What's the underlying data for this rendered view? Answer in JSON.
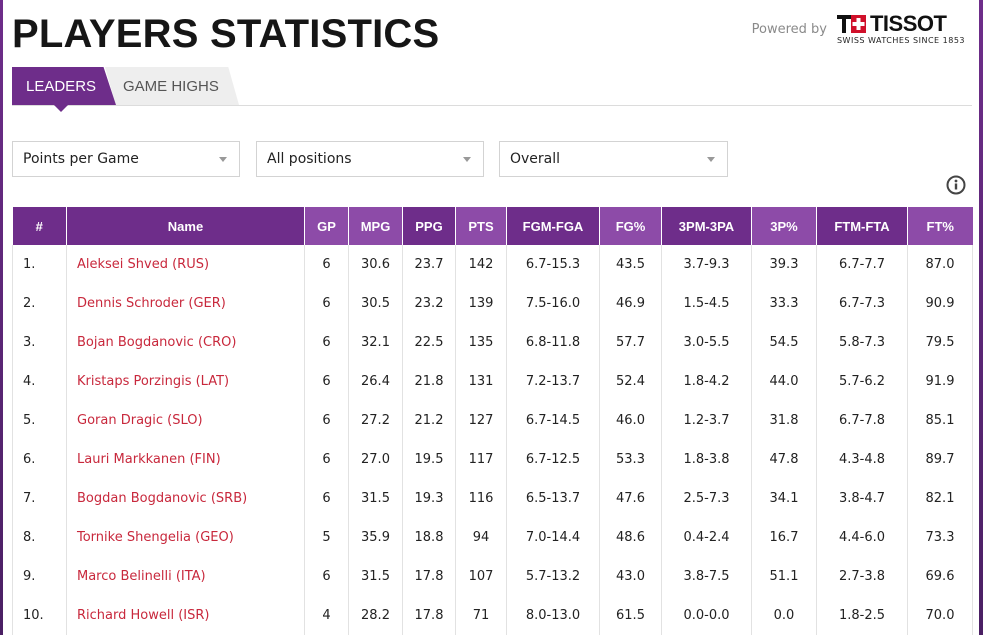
{
  "page": {
    "title": "PLAYERS STATISTICS",
    "powered_by": "Powered by",
    "sponsor": {
      "name": "TISSOT",
      "tagline": "SWISS WATCHES SINCE 1853",
      "icon": "tissot-cross-logo"
    }
  },
  "tabs": [
    {
      "label": "LEADERS",
      "active": true
    },
    {
      "label": "GAME HIGHS",
      "active": false
    }
  ],
  "filters": {
    "stat": "Points per Game",
    "position": "All positions",
    "phase": "Overall"
  },
  "table": {
    "columns": [
      "#",
      "Name",
      "GP",
      "MPG",
      "PPG",
      "PTS",
      "FGM-FGA",
      "FG%",
      "3PM-3PA",
      "3P%",
      "FTM-FTA",
      "FT%"
    ],
    "rows": [
      [
        "1.",
        "Aleksei Shved (RUS)",
        "6",
        "30.6",
        "23.7",
        "142",
        "6.7-15.3",
        "43.5",
        "3.7-9.3",
        "39.3",
        "6.7-7.7",
        "87.0"
      ],
      [
        "2.",
        "Dennis Schroder (GER)",
        "6",
        "30.5",
        "23.2",
        "139",
        "7.5-16.0",
        "46.9",
        "1.5-4.5",
        "33.3",
        "6.7-7.3",
        "90.9"
      ],
      [
        "3.",
        "Bojan Bogdanovic (CRO)",
        "6",
        "32.1",
        "22.5",
        "135",
        "6.8-11.8",
        "57.7",
        "3.0-5.5",
        "54.5",
        "5.8-7.3",
        "79.5"
      ],
      [
        "4.",
        "Kristaps Porzingis (LAT)",
        "6",
        "26.4",
        "21.8",
        "131",
        "7.2-13.7",
        "52.4",
        "1.8-4.2",
        "44.0",
        "5.7-6.2",
        "91.9"
      ],
      [
        "5.",
        "Goran Dragic (SLO)",
        "6",
        "27.2",
        "21.2",
        "127",
        "6.7-14.5",
        "46.0",
        "1.2-3.7",
        "31.8",
        "6.7-7.8",
        "85.1"
      ],
      [
        "6.",
        "Lauri Markkanen (FIN)",
        "6",
        "27.0",
        "19.5",
        "117",
        "6.7-12.5",
        "53.3",
        "1.8-3.8",
        "47.8",
        "4.3-4.8",
        "89.7"
      ],
      [
        "7.",
        "Bogdan Bogdanovic (SRB)",
        "6",
        "31.5",
        "19.3",
        "116",
        "6.5-13.7",
        "47.6",
        "2.5-7.3",
        "34.1",
        "3.8-4.7",
        "82.1"
      ],
      [
        "8.",
        "Tornike Shengelia (GEO)",
        "5",
        "35.9",
        "18.8",
        "94",
        "7.0-14.4",
        "48.6",
        "0.4-2.4",
        "16.7",
        "4.4-6.0",
        "73.3"
      ],
      [
        "9.",
        "Marco Belinelli (ITA)",
        "6",
        "31.5",
        "17.8",
        "107",
        "5.7-13.2",
        "43.0",
        "3.8-7.5",
        "51.1",
        "2.7-3.8",
        "69.6"
      ],
      [
        "10.",
        "Richard Howell (ISR)",
        "4",
        "28.2",
        "17.8",
        "71",
        "8.0-13.0",
        "61.5",
        "0.0-0.0",
        "0.0",
        "1.8-2.5",
        "70.0"
      ]
    ]
  },
  "colors": {
    "brand_purple": "#6e2d8a",
    "highlight_purple": "#8d4ba8",
    "link_red": "#c8283c"
  }
}
